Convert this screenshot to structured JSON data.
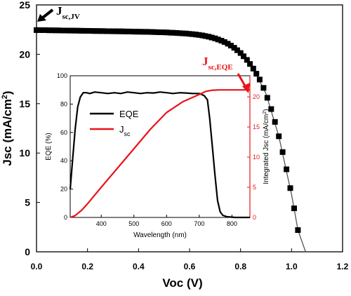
{
  "colors": {
    "main_series": "#000000",
    "fit_line": "#555555",
    "eqe_series": "#000000",
    "jsc_series": "#e8141a",
    "red_axis": "#e8141a",
    "annotation_jsc_eqe": "#e8141a"
  },
  "annotations": {
    "jsc_jv": {
      "main": "J",
      "sub": "sc,JV"
    },
    "jsc_eqe": {
      "main": "J",
      "sub": "sc,EQE"
    }
  },
  "chart_data": [
    {
      "id": "main",
      "type": "scatter",
      "title": "",
      "xlabel": "Voc (V)",
      "ylabel": {
        "main": "Jsc (mA/cm",
        "sup": "2",
        "end": ")"
      },
      "xlim": [
        0.0,
        1.2
      ],
      "ylim": [
        0,
        25
      ],
      "xticks": [
        0.0,
        0.2,
        0.4,
        0.6,
        0.8,
        1.0,
        1.2
      ],
      "xtick_labels": [
        "0.0",
        "0.2",
        "0.4",
        "0.6",
        "0.8",
        "1.0",
        "1.2"
      ],
      "yticks": [
        0,
        5,
        10,
        15,
        20,
        25
      ],
      "ytick_labels": [
        "0",
        "5",
        "10",
        "15",
        "20",
        "25"
      ],
      "grid": false,
      "series": [
        {
          "marker": "square",
          "points": [
            [
              0.0,
              22.45
            ],
            [
              0.012,
              22.45
            ],
            [
              0.025,
              22.44
            ],
            [
              0.037,
              22.44
            ],
            [
              0.05,
              22.43
            ],
            [
              0.062,
              22.43
            ],
            [
              0.075,
              22.42
            ],
            [
              0.087,
              22.42
            ],
            [
              0.1,
              22.41
            ],
            [
              0.112,
              22.41
            ],
            [
              0.125,
              22.4
            ],
            [
              0.137,
              22.4
            ],
            [
              0.15,
              22.39
            ],
            [
              0.162,
              22.39
            ],
            [
              0.175,
              22.38
            ],
            [
              0.187,
              22.38
            ],
            [
              0.2,
              22.37
            ],
            [
              0.212,
              22.37
            ],
            [
              0.225,
              22.36
            ],
            [
              0.237,
              22.36
            ],
            [
              0.25,
              22.35
            ],
            [
              0.262,
              22.35
            ],
            [
              0.275,
              22.34
            ],
            [
              0.287,
              22.34
            ],
            [
              0.3,
              22.33
            ],
            [
              0.312,
              22.33
            ],
            [
              0.325,
              22.32
            ],
            [
              0.337,
              22.32
            ],
            [
              0.35,
              22.31
            ],
            [
              0.362,
              22.31
            ],
            [
              0.375,
              22.3
            ],
            [
              0.387,
              22.29
            ],
            [
              0.4,
              22.29
            ],
            [
              0.412,
              22.28
            ],
            [
              0.425,
              22.27
            ],
            [
              0.437,
              22.27
            ],
            [
              0.45,
              22.26
            ],
            [
              0.462,
              22.25
            ],
            [
              0.475,
              22.24
            ],
            [
              0.487,
              22.23
            ],
            [
              0.5,
              22.22
            ],
            [
              0.512,
              22.21
            ],
            [
              0.525,
              22.19
            ],
            [
              0.537,
              22.18
            ],
            [
              0.55,
              22.16
            ],
            [
              0.562,
              22.14
            ],
            [
              0.575,
              22.12
            ],
            [
              0.587,
              22.1
            ],
            [
              0.6,
              22.07
            ],
            [
              0.612,
              22.04
            ],
            [
              0.625,
              22.0
            ],
            [
              0.637,
              21.96
            ],
            [
              0.65,
              21.91
            ],
            [
              0.662,
              21.85
            ],
            [
              0.675,
              21.78
            ],
            [
              0.687,
              21.7
            ],
            [
              0.7,
              21.61
            ],
            [
              0.712,
              21.5
            ],
            [
              0.725,
              21.38
            ],
            [
              0.737,
              21.24
            ],
            [
              0.75,
              21.07
            ],
            [
              0.762,
              20.88
            ],
            [
              0.775,
              20.66
            ],
            [
              0.787,
              20.41
            ],
            [
              0.8,
              20.13
            ],
            [
              0.812,
              19.8
            ],
            [
              0.825,
              19.43
            ],
            [
              0.837,
              19.02
            ],
            [
              0.85,
              18.55
            ],
            [
              0.862,
              18.03
            ],
            [
              0.875,
              17.44
            ],
            [
              0.89,
              16.6
            ],
            [
              0.905,
              15.6
            ],
            [
              0.92,
              14.45
            ],
            [
              0.935,
              13.15
            ],
            [
              0.95,
              11.7
            ],
            [
              0.965,
              10.1
            ],
            [
              0.98,
              8.35
            ],
            [
              0.995,
              6.45
            ],
            [
              1.01,
              4.4
            ],
            [
              1.025,
              2.2
            ]
          ]
        },
        {
          "type": "line",
          "points": [
            [
              0.0,
              22.45
            ],
            [
              0.4,
              22.29
            ],
            [
              0.6,
              22.07
            ],
            [
              0.7,
              21.61
            ],
            [
              0.8,
              20.13
            ],
            [
              0.85,
              18.55
            ],
            [
              0.9,
              16.0
            ],
            [
              0.95,
              11.7
            ],
            [
              1.0,
              5.8
            ],
            [
              1.025,
              2.2
            ],
            [
              1.055,
              0.0
            ]
          ]
        }
      ]
    },
    {
      "id": "inset",
      "type": "line",
      "title": "",
      "xlabel": "Wavelength (nm)",
      "ylabel": "EQE (%)",
      "y2label": {
        "main": "Integrated Jsc (mA/cm",
        "sup": "2",
        "end": ")"
      },
      "xlim": [
        305,
        855
      ],
      "ylim": [
        0,
        100
      ],
      "y2lim": [
        0,
        23.5
      ],
      "xticks": [
        400,
        500,
        600,
        700,
        800
      ],
      "xtick_labels": [
        "400",
        "500",
        "600",
        "700",
        "800"
      ],
      "yticks": [
        0,
        20,
        40,
        60,
        80,
        100
      ],
      "ytick_labels": [
        "0",
        "20",
        "40",
        "60",
        "80",
        "100"
      ],
      "y2ticks": [
        0,
        5,
        10,
        15,
        20
      ],
      "y2tick_labels": [
        "0",
        "5",
        "10",
        "15",
        "20"
      ],
      "legend_position": "upper-left",
      "grid": false,
      "series": [
        {
          "name": "EQE",
          "axis": "left",
          "points": [
            [
              305,
              20
            ],
            [
              312,
              40
            ],
            [
              320,
              62
            ],
            [
              328,
              78
            ],
            [
              336,
              85
            ],
            [
              345,
              88
            ],
            [
              355,
              88
            ],
            [
              365,
              87.5
            ],
            [
              380,
              88.5
            ],
            [
              400,
              88
            ],
            [
              420,
              87.5
            ],
            [
              440,
              88
            ],
            [
              460,
              87.5
            ],
            [
              480,
              88.5
            ],
            [
              500,
              88
            ],
            [
              520,
              87.5
            ],
            [
              540,
              88
            ],
            [
              560,
              87.8
            ],
            [
              580,
              88.5
            ],
            [
              600,
              88
            ],
            [
              620,
              87.5
            ],
            [
              640,
              88
            ],
            [
              660,
              87.8
            ],
            [
              680,
              87.5
            ],
            [
              700,
              87.5
            ],
            [
              715,
              86
            ],
            [
              725,
              83
            ],
            [
              732,
              70
            ],
            [
              740,
              50
            ],
            [
              748,
              30
            ],
            [
              756,
              12
            ],
            [
              764,
              4
            ],
            [
              772,
              1.5
            ],
            [
              785,
              0.5
            ],
            [
              810,
              0
            ],
            [
              855,
              0
            ]
          ]
        },
        {
          "name": "J",
          "name_sub": "sc",
          "axis": "right",
          "points": [
            [
              305,
              0
            ],
            [
              320,
              0.3
            ],
            [
              340,
              1.2
            ],
            [
              360,
              2.4
            ],
            [
              400,
              5.0
            ],
            [
              450,
              8.2
            ],
            [
              500,
              11.4
            ],
            [
              550,
              14.6
            ],
            [
              600,
              17.4
            ],
            [
              650,
              19.2
            ],
            [
              700,
              20.4
            ],
            [
              720,
              20.9
            ],
            [
              740,
              21.1
            ],
            [
              760,
              21.15
            ],
            [
              800,
              21.15
            ],
            [
              855,
              21.15
            ]
          ]
        }
      ]
    }
  ]
}
